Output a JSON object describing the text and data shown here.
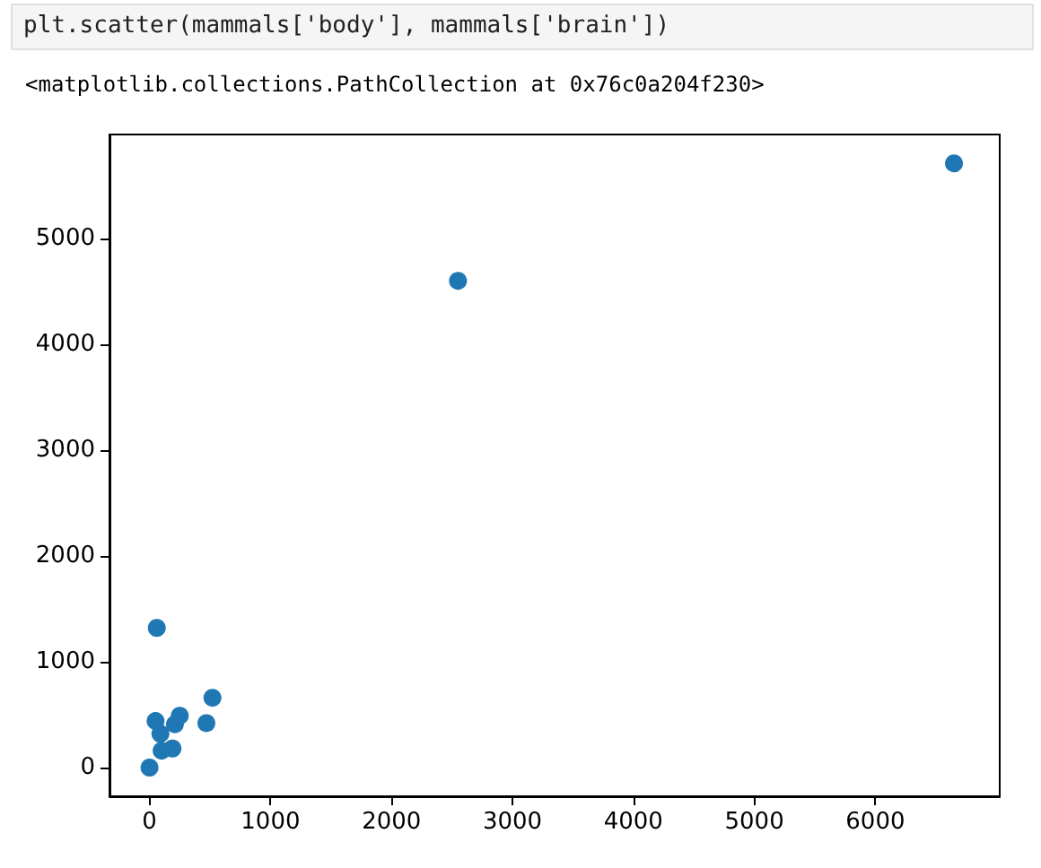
{
  "chart_data": {
    "type": "scatter",
    "annotations": [
      "plt.scatter(mammals['body'], mammals['brain'])",
      "<matplotlib.collections.PathCollection at 0x76c0a204f230>"
    ],
    "x": [
      6650,
      2550,
      60,
      520,
      470,
      250,
      210,
      190,
      100,
      90,
      50,
      0
    ],
    "series": [
      {
        "color": "#1f77b4",
        "values": [
          5710,
          4600,
          1320,
          660,
          420,
          490,
          410,
          180,
          160,
          320,
          440,
          0
        ]
      }
    ],
    "xlim": [
      -331,
      7028
    ],
    "ylim": [
      -271,
      5983
    ],
    "xticks": [
      0,
      1000,
      2000,
      3000,
      4000,
      5000,
      6000
    ],
    "yticks": [
      0,
      1000,
      2000,
      3000,
      4000,
      5000
    ],
    "grid": false,
    "marker": "circle"
  }
}
